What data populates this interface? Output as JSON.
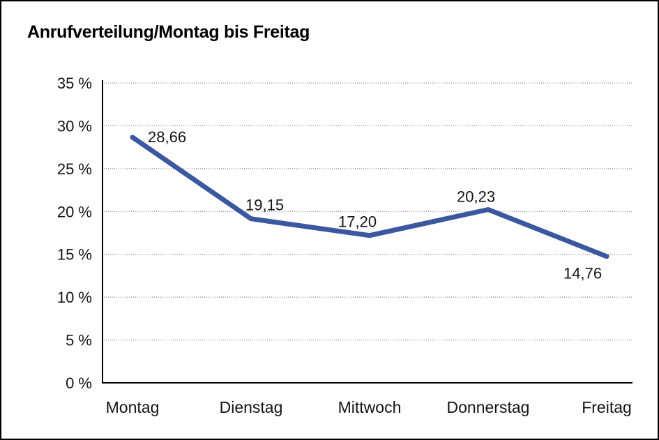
{
  "chart_data": {
    "type": "line",
    "title": "Anrufverteilung/Montag bis Freitag",
    "categories": [
      "Montag",
      "Dienstag",
      "Mittwoch",
      "Donnerstag",
      "Freitag"
    ],
    "values": [
      28.66,
      19.15,
      17.2,
      20.23,
      14.76
    ],
    "value_labels": [
      "28,66",
      "19,15",
      "17,20",
      "20,23",
      "14,76"
    ],
    "y_ticks": [
      "0 %",
      "5 %",
      "10 %",
      "15 %",
      "20 %",
      "25 %",
      "30 %",
      "35 %"
    ],
    "ylim": [
      0,
      35
    ],
    "y_tick_step": 5,
    "xlabel": "",
    "ylabel": "",
    "legend": "none",
    "grid": "horizontal-dotted",
    "line_color": "#3A579F",
    "axis_color": "#000000",
    "text_color": "#141414",
    "background_color": "#ffffff",
    "border_color": "#000000"
  }
}
